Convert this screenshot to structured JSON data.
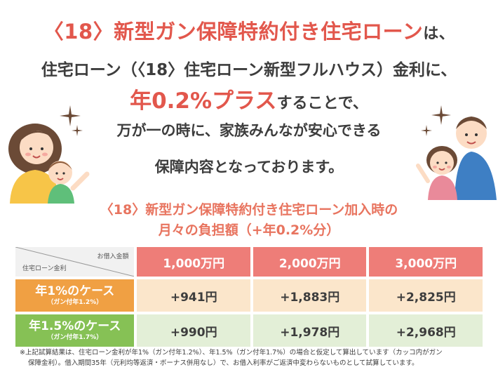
{
  "headline": {
    "line1_red": "〈18〉新型ガン保障特約付き住宅ローン",
    "line1_black": "は、",
    "line2": "住宅ローン（〈18〉住宅ローン新型フルハウス）金利に、",
    "line3_red": "年0.2%プラス",
    "line3_black": "することで、",
    "line4": "万が一の時に、家族みんなが安心できる",
    "line5": "保障内容となっております。"
  },
  "subtitle": {
    "line1": "〈18〉新型ガン保障特約付き住宅ローン加入時の",
    "line2": "月々の負担額（+年0.2%分）"
  },
  "table": {
    "corner_top": "お借入金額",
    "corner_bottom": "住宅ローン金利",
    "headers": [
      "1,000万円",
      "2,000万円",
      "3,000万円"
    ],
    "rows": [
      {
        "label": "年1%のケース",
        "sublabel": "（ガン付年1.2%）",
        "values": [
          "+941円",
          "+1,883円",
          "+2,825円"
        ]
      },
      {
        "label": "年1.5%のケース",
        "sublabel": "（ガン付年1.7%）",
        "values": [
          "+990円",
          "+1,978円",
          "+2,968円"
        ]
      }
    ]
  },
  "note": {
    "line1": "※上記試算結果は、住宅ローン金利が年1%（ガン付年1.2%）、年1.5%（ガン付年1.7%）の場合と仮定して算出しています（カッコ内がガン",
    "line2": "保障金利）。借入期間35年（元利均等返済・ボーナス併用なし）で、お借入利率がご返済中変わらないものとして試算しています。"
  },
  "colors": {
    "red_text": "#e2574c",
    "header_bg": "#ee7d78",
    "row1_label_bg": "#f0a043",
    "row1_value_bg": "#fbe6cb",
    "row2_label_bg": "#86c155",
    "row2_value_bg": "#e3efd7"
  },
  "icons": [
    "sparkle-icon",
    "family-mother-child-illustration",
    "family-father-child-illustration"
  ]
}
